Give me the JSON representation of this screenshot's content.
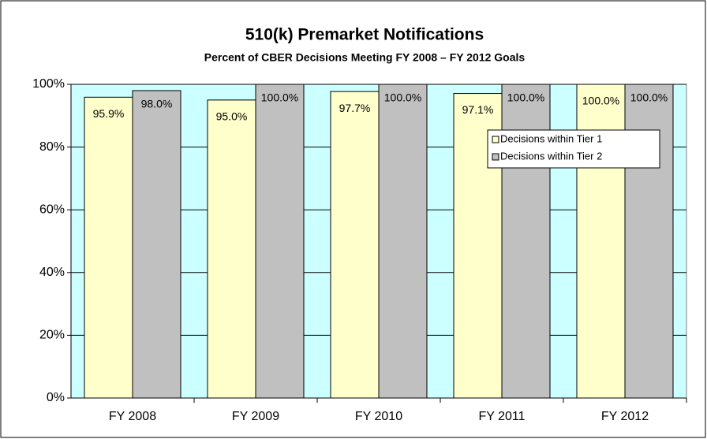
{
  "chart_data": {
    "type": "bar",
    "title": "510(k) Premarket Notifications",
    "subtitle": "Percent of CBER Decisions Meeting FY 2008 – FY 2012 Goals",
    "categories": [
      "FY 2008",
      "FY 2009",
      "FY 2010",
      "FY 2011",
      "FY 2012"
    ],
    "series": [
      {
        "name": "Decisions within Tier 1",
        "color": "#ffffcc",
        "values": [
          95.9,
          95.0,
          97.7,
          97.1,
          100.0
        ],
        "value_labels": [
          "95.9%",
          "95.0%",
          "97.7%",
          "97.1%",
          "100.0%"
        ]
      },
      {
        "name": "Decisions within Tier 2",
        "color": "#c0c0c0",
        "values": [
          98.0,
          100.0,
          100.0,
          100.0,
          100.0
        ],
        "value_labels": [
          "98.0%",
          "100.0%",
          "100.0%",
          "100.0%",
          "100.0%"
        ]
      }
    ],
    "ylim": [
      0,
      100
    ],
    "yticks": [
      {
        "value": 0,
        "label": "0%"
      },
      {
        "value": 20,
        "label": "20%"
      },
      {
        "value": 40,
        "label": "40%"
      },
      {
        "value": 60,
        "label": "60%"
      },
      {
        "value": 80,
        "label": "80%"
      },
      {
        "value": 100,
        "label": "100%"
      }
    ],
    "grid": true,
    "plot_background": "#ccffff",
    "legend": "upper right"
  }
}
